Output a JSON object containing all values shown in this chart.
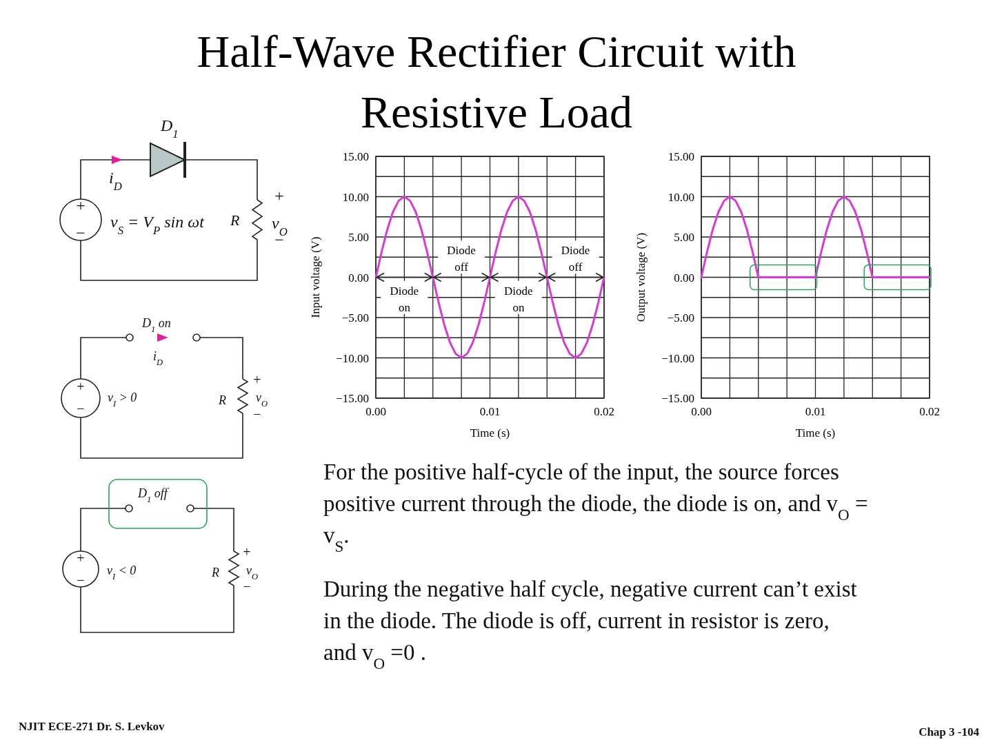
{
  "chart_data": [
    {
      "type": "other",
      "title": "Half-Wave Rectifier Circuit with Resistive Load",
      "annotations": [
        "For the positive half-cycle of the input, the source forces positive current through the diode, the diode is on, and v$_{O}$ = v$_{S}$.",
        "During the negative half cycle, negative current can’t exist in the diode. The diode is off, current in resistor is zero, and v$_{O}$ =0 .",
        "NJIT ECE-271   Dr. S. Levkov",
        "Chap 3 -104",
        "D$_{1}$",
        "i$_{D}$",
        "v$_{S}$ = V$_{P}$ sin ωt",
        "R",
        "v$_{O}$",
        "+",
        "−",
        "+",
        "−",
        "D$_{1}$  on",
        "i$_{D}$",
        "v$_{I}$ > 0",
        "R",
        "v$_{O}$",
        "+",
        "−",
        "+",
        "−",
        "D$_{1}$  off",
        "v$_{I}$ < 0",
        "R",
        "v$_{O}$",
        "+",
        "−",
        "+",
        "−"
      ]
    },
    {
      "type": "line",
      "xlabel": "Time (s)",
      "ylabel": "Input voltage (V)",
      "grid": true,
      "xlim": [
        0,
        0.02
      ],
      "ylim": [
        -15,
        15
      ],
      "xticks": [
        {
          "value": 0,
          "label": "0.00"
        },
        {
          "value": 0.0025,
          "label": null
        },
        {
          "value": 0.005,
          "label": null
        },
        {
          "value": 0.0075,
          "label": null
        },
        {
          "value": 0.01,
          "label": "0.01"
        },
        {
          "value": 0.0125,
          "label": null
        },
        {
          "value": 0.015,
          "label": null
        },
        {
          "value": 0.0175,
          "label": null
        },
        {
          "value": 0.02,
          "label": "0.02"
        }
      ],
      "yticks": [
        {
          "value": 15,
          "label": "15.00"
        },
        {
          "value": 12.5,
          "label": null
        },
        {
          "value": 10,
          "label": "10.00"
        },
        {
          "value": 7.5,
          "label": null
        },
        {
          "value": 5,
          "label": "5.00"
        },
        {
          "value": 2.5,
          "label": null
        },
        {
          "value": 0,
          "label": "0.00"
        },
        {
          "value": -2.5,
          "label": null
        },
        {
          "value": -5,
          "label": "−5.00"
        },
        {
          "value": -7.5,
          "label": null
        },
        {
          "value": -10,
          "label": "−10.00"
        },
        {
          "value": -12.5,
          "label": null
        },
        {
          "value": -15,
          "label": "−15.00"
        }
      ],
      "x": [
        0,
        0.0005,
        0.001,
        0.0015,
        0.002,
        0.0025,
        0.003,
        0.0035,
        0.004,
        0.0045,
        0.005,
        0.0055,
        0.006,
        0.0065,
        0.007,
        0.0075,
        0.008,
        0.0085,
        0.009,
        0.0095,
        0.01,
        0.0105,
        0.011,
        0.0115,
        0.012,
        0.0125,
        0.013,
        0.0135,
        0.014,
        0.0145,
        0.015,
        0.0155,
        0.016,
        0.0165,
        0.017,
        0.0175,
        0.018,
        0.0185,
        0.019,
        0.0195,
        0.02
      ],
      "series": [
        {
          "color": "#d63bd6",
          "values": [
            0,
            3.1,
            5.9,
            8.1,
            9.5,
            10,
            9.5,
            8.1,
            5.9,
            3.1,
            0,
            -3.1,
            -5.9,
            -8.1,
            -9.5,
            -10,
            -9.5,
            -8.1,
            -5.9,
            -3.1,
            0,
            3.1,
            5.9,
            8.1,
            9.5,
            10,
            9.5,
            8.1,
            5.9,
            3.1,
            0,
            -3.1,
            -5.9,
            -8.1,
            -9.5,
            -10,
            -9.5,
            -8.1,
            -5.9,
            -3.1,
            0
          ]
        }
      ],
      "annotations": [
        "Diode on",
        "Diode off",
        "Diode on",
        "Diode off"
      ]
    },
    {
      "type": "line",
      "xlabel": "Time (s)",
      "ylabel": "Output voltage (V)",
      "grid": true,
      "xlim": [
        0,
        0.02
      ],
      "ylim": [
        -15,
        15
      ],
      "xticks": [
        {
          "value": 0,
          "label": "0.00"
        },
        {
          "value": 0.0025,
          "label": null
        },
        {
          "value": 0.005,
          "label": null
        },
        {
          "value": 0.0075,
          "label": null
        },
        {
          "value": 0.01,
          "label": "0.01"
        },
        {
          "value": 0.0125,
          "label": null
        },
        {
          "value": 0.015,
          "label": null
        },
        {
          "value": 0.0175,
          "label": null
        },
        {
          "value": 0.02,
          "label": "0.02"
        }
      ],
      "yticks": [
        {
          "value": 15,
          "label": "15.00"
        },
        {
          "value": 12.5,
          "label": null
        },
        {
          "value": 10,
          "label": "10.00"
        },
        {
          "value": 7.5,
          "label": null
        },
        {
          "value": 5,
          "label": "5.00"
        },
        {
          "value": 2.5,
          "label": null
        },
        {
          "value": 0,
          "label": "0.00"
        },
        {
          "value": -2.5,
          "label": null
        },
        {
          "value": -5,
          "label": "−5.00"
        },
        {
          "value": -7.5,
          "label": null
        },
        {
          "value": -10,
          "label": "−10.00"
        },
        {
          "value": -12.5,
          "label": null
        },
        {
          "value": -15,
          "label": "−15.00"
        }
      ],
      "x": [
        0,
        0.0005,
        0.001,
        0.0015,
        0.002,
        0.0025,
        0.003,
        0.0035,
        0.004,
        0.0045,
        0.005,
        0.0055,
        0.006,
        0.0065,
        0.007,
        0.0075,
        0.008,
        0.0085,
        0.009,
        0.0095,
        0.01,
        0.0105,
        0.011,
        0.0115,
        0.012,
        0.0125,
        0.013,
        0.0135,
        0.014,
        0.0145,
        0.015,
        0.0155,
        0.016,
        0.0165,
        0.017,
        0.0175,
        0.018,
        0.0185,
        0.019,
        0.0195,
        0.02
      ],
      "series": [
        {
          "color": "#d63bd6",
          "values": [
            0,
            3.1,
            5.9,
            8.1,
            9.5,
            10,
            9.5,
            8.1,
            5.9,
            3.1,
            0,
            0,
            0,
            0,
            0,
            0,
            0,
            0,
            0,
            0,
            0,
            3.1,
            5.9,
            8.1,
            9.5,
            10,
            9.5,
            8.1,
            5.9,
            3.1,
            0,
            0,
            0,
            0,
            0,
            0,
            0,
            0,
            0,
            0,
            0
          ]
        }
      ]
    }
  ]
}
